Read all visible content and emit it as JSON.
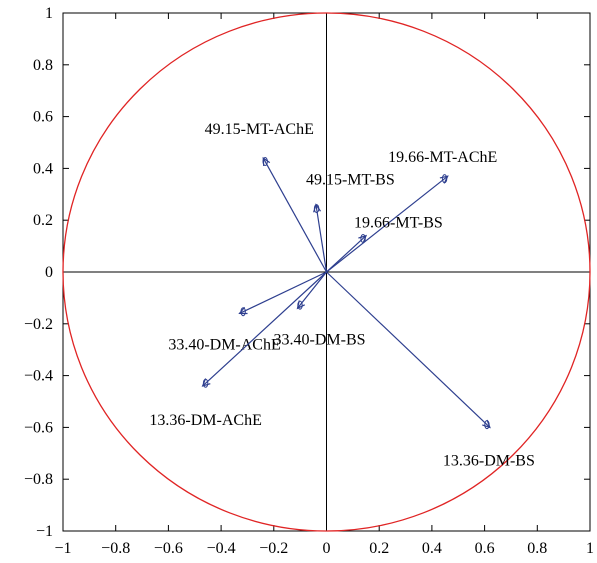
{
  "chart_data": {
    "type": "scatter",
    "xlim": [
      -1,
      1
    ],
    "ylim": [
      -1,
      1
    ],
    "xticks": [
      "-1",
      "-0.8",
      "-0.6",
      "-0.4",
      "-0.2",
      "0",
      "0.2",
      "0.4",
      "0.6",
      "0.8",
      "1"
    ],
    "yticks": [
      "-1",
      "-0.8",
      "-0.6",
      "-0.4",
      "-0.2",
      "0",
      "0.2",
      "0.4",
      "0.6",
      "0.8",
      "1"
    ],
    "unit_circle": true,
    "circle_color": "#e02424",
    "vector_color": "#2e3f8f",
    "grid": false,
    "vectors": [
      {
        "label": "49.15-MT-AChE",
        "x": -0.24,
        "y": 0.44
      },
      {
        "label": "49.15-MT-BS",
        "x": -0.04,
        "y": 0.26
      },
      {
        "label": "19.66-MT-AChE",
        "x": 0.46,
        "y": 0.37
      },
      {
        "label": "19.66-MT-BS",
        "x": 0.15,
        "y": 0.14
      },
      {
        "label": "33.40-DM-AChE",
        "x": -0.33,
        "y": -0.16
      },
      {
        "label": "33.40-DM-BS",
        "x": -0.11,
        "y": -0.14
      },
      {
        "label": "13.36-DM-AChE",
        "x": -0.47,
        "y": -0.44
      },
      {
        "label": "13.36-DM-BS",
        "x": 0.62,
        "y": -0.6
      }
    ]
  }
}
